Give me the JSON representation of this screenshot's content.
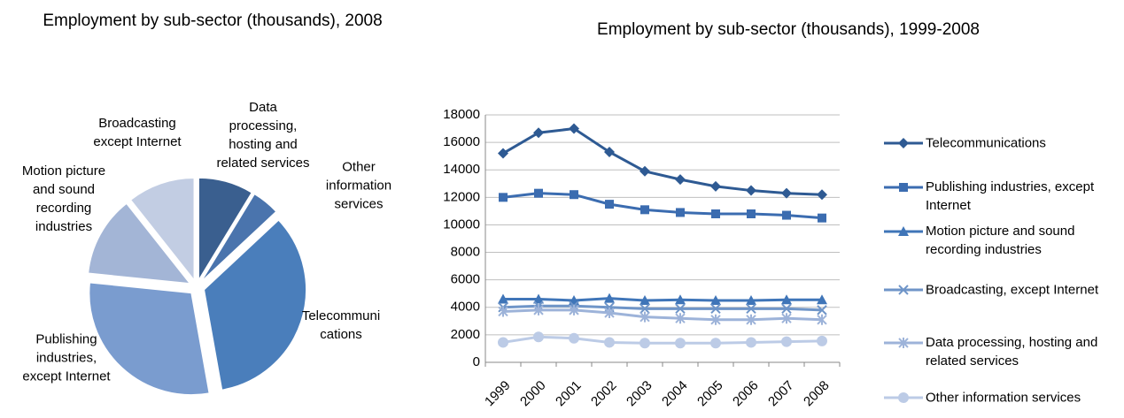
{
  "chart_data": [
    {
      "type": "pie",
      "title": "Employment by sub-sector (thousands), 2008",
      "categories": [
        "Data processing, hosting and related services",
        "Other information services",
        "Telecommunications",
        "Publishing industries, except Internet",
        "Motion picture and sound recording industries",
        "Broadcasting except Internet"
      ],
      "values": [
        3100,
        1550,
        12200,
        10500,
        4550,
        3800
      ],
      "colors": [
        "#3a5f8f",
        "#4a74ad",
        "#4a7ebb",
        "#7a9ccf",
        "#a3b5d6",
        "#c2cde3"
      ]
    },
    {
      "type": "line",
      "title": "Employment by sub-sector (thousands), 1999-2008",
      "categories": [
        "1999",
        "2000",
        "2001",
        "2002",
        "2003",
        "2004",
        "2005",
        "2006",
        "2007",
        "2008"
      ],
      "ylim": [
        0,
        18000
      ],
      "yticks": [
        0,
        2000,
        4000,
        6000,
        8000,
        10000,
        12000,
        14000,
        16000,
        18000
      ],
      "grid": true,
      "legend": "right",
      "series": [
        {
          "name": "Telecommunications",
          "color": "#2e5a93",
          "marker": "diamond",
          "values": [
            15200,
            16700,
            17000,
            15300,
            13900,
            13300,
            12800,
            12500,
            12300,
            12200
          ]
        },
        {
          "name": "Publishing industries, except Internet",
          "color": "#3b6cb0",
          "marker": "square",
          "values": [
            12000,
            12300,
            12200,
            11500,
            11100,
            10900,
            10800,
            10800,
            10700,
            10500
          ]
        },
        {
          "name": "Motion picture and sound recording industries",
          "color": "#3f75b8",
          "marker": "triangle",
          "values": [
            4600,
            4600,
            4500,
            4650,
            4500,
            4550,
            4500,
            4500,
            4550,
            4550
          ]
        },
        {
          "name": "Broadcasting, except Internet",
          "color": "#6f95c8",
          "marker": "x",
          "values": [
            4000,
            4100,
            4100,
            4000,
            3900,
            3900,
            3900,
            3900,
            3900,
            3800
          ]
        },
        {
          "name": "Data processing, hosting and related services",
          "color": "#9db3d9",
          "marker": "star",
          "values": [
            3700,
            3800,
            3800,
            3600,
            3300,
            3200,
            3100,
            3100,
            3200,
            3100
          ]
        },
        {
          "name": "Other information services",
          "color": "#bccbe6",
          "marker": "circle",
          "values": [
            1450,
            1850,
            1750,
            1450,
            1400,
            1400,
            1400,
            1450,
            1500,
            1550
          ]
        }
      ]
    }
  ]
}
